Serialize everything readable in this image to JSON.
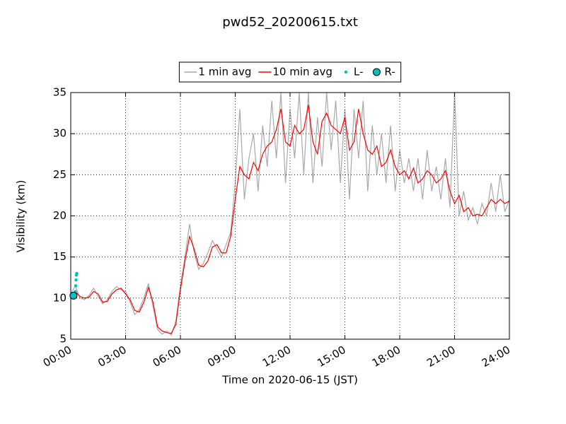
{
  "chart_data": {
    "type": "line",
    "title": "pwd52_20200615.txt",
    "x_label": "Time on 2020-06-15 (JST)",
    "y_label": "Visibility (km)",
    "xlim": [
      0,
      24
    ],
    "ylim": [
      5,
      35
    ],
    "xticks": [
      {
        "value": 0,
        "label": "00:00"
      },
      {
        "value": 3,
        "label": "03:00"
      },
      {
        "value": 6,
        "label": "06:00"
      },
      {
        "value": 9,
        "label": "09:00"
      },
      {
        "value": 12,
        "label": "12:00"
      },
      {
        "value": 15,
        "label": "15:00"
      },
      {
        "value": 18,
        "label": "18:00"
      },
      {
        "value": 21,
        "label": "21:00"
      },
      {
        "value": 24,
        "label": "24:00"
      }
    ],
    "yticks": [
      5,
      10,
      15,
      20,
      25,
      30,
      35
    ],
    "grid": true,
    "legend": "top",
    "series": [
      {
        "name": "1 min avg",
        "color": "#a9a9a9",
        "marker": "none",
        "x": [
          0,
          0.25,
          0.5,
          0.75,
          1,
          1.25,
          1.5,
          1.75,
          2,
          2.25,
          2.5,
          2.75,
          3,
          3.25,
          3.5,
          3.75,
          4,
          4.25,
          4.5,
          4.75,
          5,
          5.25,
          5.5,
          5.75,
          6,
          6.25,
          6.5,
          6.75,
          7,
          7.25,
          7.5,
          7.75,
          8,
          8.25,
          8.5,
          8.75,
          9,
          9.25,
          9.5,
          9.75,
          10,
          10.25,
          10.5,
          10.75,
          11,
          11.25,
          11.5,
          11.75,
          12,
          12.25,
          12.5,
          12.75,
          13,
          13.25,
          13.5,
          13.75,
          14,
          14.25,
          14.5,
          14.75,
          15,
          15.25,
          15.5,
          15.75,
          16,
          16.25,
          16.5,
          16.75,
          17,
          17.25,
          17.5,
          17.75,
          18,
          18.25,
          18.5,
          18.75,
          19,
          19.25,
          19.5,
          19.75,
          20,
          20.25,
          20.5,
          20.75,
          21,
          21.25,
          21.5,
          21.75,
          22,
          22.25,
          22.5,
          22.75,
          23,
          23.25,
          23.5,
          23.75,
          24
        ],
        "values": [
          10.5,
          11.5,
          10,
          9.8,
          10.3,
          11.2,
          10.2,
          9.3,
          9.8,
          10.8,
          11.4,
          11.0,
          10.8,
          9.5,
          8.0,
          8.6,
          10,
          11.8,
          9.0,
          6.2,
          5.6,
          6.0,
          5.5,
          7.2,
          11.5,
          15,
          19,
          15.5,
          13.5,
          14.2,
          15.5,
          17.0,
          16,
          15,
          16.5,
          18,
          24,
          33,
          22,
          27,
          30,
          23,
          31,
          26,
          34,
          27,
          35,
          24,
          33,
          27,
          35,
          25,
          35,
          24,
          32,
          26,
          35,
          28,
          34,
          24,
          33,
          22,
          33,
          27,
          34,
          23,
          31,
          25,
          30,
          24,
          31,
          23,
          28,
          24,
          27,
          23,
          27,
          22,
          28,
          23,
          26,
          22,
          27,
          21,
          35,
          20,
          23,
          19.5,
          21,
          19,
          21.5,
          20,
          24,
          20.5,
          25,
          20.5,
          22
        ]
      },
      {
        "name": "10 min avg",
        "color": "#ff0000",
        "marker": "none",
        "x": [
          0,
          0.25,
          0.5,
          0.75,
          1,
          1.25,
          1.5,
          1.75,
          2,
          2.25,
          2.5,
          2.75,
          3,
          3.25,
          3.5,
          3.75,
          4,
          4.25,
          4.5,
          4.75,
          5,
          5.25,
          5.5,
          5.75,
          6,
          6.25,
          6.5,
          6.75,
          7,
          7.25,
          7.5,
          7.75,
          8,
          8.25,
          8.5,
          8.75,
          9,
          9.25,
          9.5,
          9.75,
          10,
          10.25,
          10.5,
          10.75,
          11,
          11.25,
          11.5,
          11.75,
          12,
          12.25,
          12.5,
          12.75,
          13,
          13.25,
          13.5,
          13.75,
          14,
          14.25,
          14.5,
          14.75,
          15,
          15.25,
          15.5,
          15.75,
          16,
          16.25,
          16.5,
          16.75,
          17,
          17.25,
          17.5,
          17.75,
          18,
          18.25,
          18.5,
          18.75,
          19,
          19.25,
          19.5,
          19.75,
          20,
          20.25,
          20.5,
          20.75,
          21,
          21.25,
          21.5,
          21.75,
          22,
          22.25,
          22.5,
          22.75,
          23,
          23.25,
          23.5,
          23.75,
          24
        ],
        "values": [
          10.3,
          10.8,
          10.2,
          10.0,
          10.1,
          10.8,
          10.5,
          9.5,
          9.6,
          10.5,
          11.0,
          11.2,
          10.5,
          9.8,
          8.5,
          8.3,
          9.5,
          11.3,
          9.5,
          6.5,
          6.0,
          5.8,
          5.7,
          6.8,
          11,
          14.5,
          17.5,
          16.0,
          14.0,
          13.8,
          14.5,
          16.2,
          16.5,
          15.5,
          15.5,
          17.5,
          22,
          26,
          25.0,
          24.5,
          26.5,
          25.5,
          27.5,
          28.5,
          29.0,
          30.5,
          33.0,
          29.0,
          28.5,
          31.0,
          30.0,
          30.5,
          33.5,
          29,
          27.5,
          31.5,
          32.5,
          31.0,
          30.5,
          30.0,
          32.0,
          28.0,
          29.0,
          33.0,
          30.0,
          28.0,
          27.5,
          28.5,
          26.0,
          26.5,
          28.0,
          26.0,
          25.0,
          25.5,
          24.5,
          25.8,
          24.0,
          24.5,
          25.5,
          25.0,
          24.0,
          24.5,
          25.5,
          23.0,
          21.5,
          22.5,
          20.5,
          21.0,
          20.0,
          20.2,
          20.0,
          21.0,
          22.0,
          21.5,
          22.0,
          21.5,
          21.8
        ]
      },
      {
        "name": "L-",
        "color": "#00bfbf",
        "marker": "point",
        "x": [
          0.25,
          0.27,
          0.29,
          0.31,
          0.33
        ],
        "values": [
          10.8,
          11.5,
          12.2,
          12.8,
          13.0
        ]
      },
      {
        "name": "R-",
        "color": "#00bfbf",
        "marker": "circle",
        "x": [
          0.15
        ],
        "values": [
          10.3
        ]
      }
    ]
  }
}
